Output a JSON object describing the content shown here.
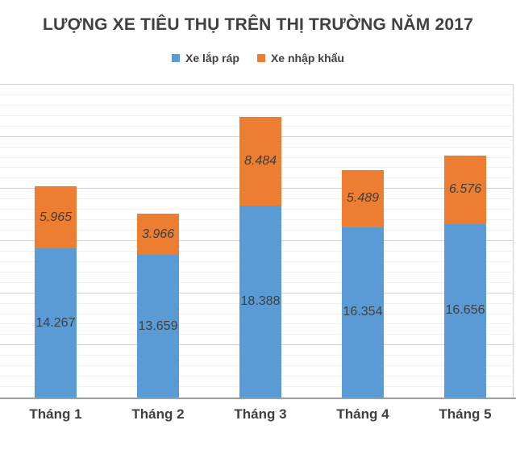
{
  "chart_data": {
    "type": "bar",
    "variant": "stacked-column",
    "title": "LƯỢNG XE TIÊU THỤ TRÊN THỊ TRƯỜNG NĂM 2017",
    "categories": [
      "Tháng 1",
      "Tháng 2",
      "Tháng 3",
      "Tháng 4",
      "Tháng 5"
    ],
    "series": [
      {
        "name": "Xe lắp ráp",
        "color": "#5B9BD5",
        "values": [
          14267,
          13659,
          18388,
          16354,
          16656
        ],
        "display_values": [
          "14.267",
          "13.659",
          "18.388",
          "16.354",
          "16.656"
        ],
        "label_style": "normal"
      },
      {
        "name": "Xe nhập khẩu",
        "color": "#ED7D31",
        "values": [
          5965,
          3966,
          8484,
          5489,
          6576
        ],
        "display_values": [
          "5.965",
          "3.966",
          "8.484",
          "5.489",
          "6.576"
        ],
        "label_style": "italic"
      }
    ],
    "ylim": [
      0,
      30000
    ],
    "gridlines": {
      "minor_step": 1000,
      "major_step": 5000
    },
    "y_axis_tick_labels_visible": false,
    "legend_position": "top",
    "label_color": "#404040"
  }
}
